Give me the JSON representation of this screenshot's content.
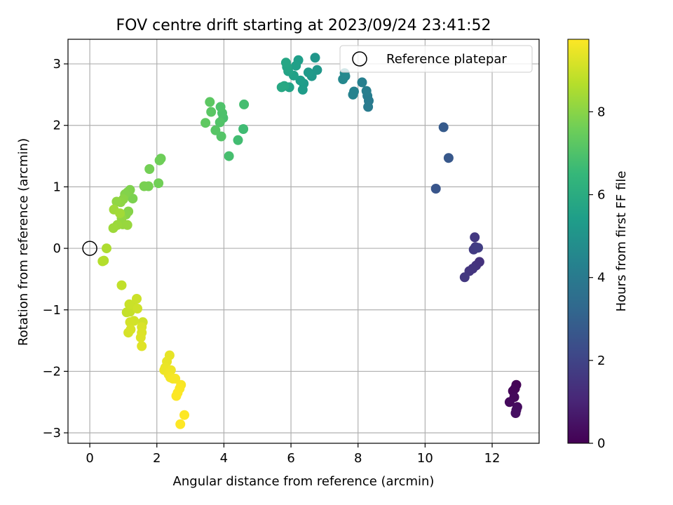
{
  "chart_data": {
    "type": "scatter",
    "title": "FOV centre drift starting at 2023/09/24 23:41:52",
    "xlabel": "Angular distance from reference (arcmin)",
    "ylabel": "Rotation from reference (arcmin)",
    "xlim": [
      -0.65,
      13.4
    ],
    "ylim": [
      -3.17,
      3.4
    ],
    "xticks": [
      0,
      2,
      4,
      6,
      8,
      10,
      12
    ],
    "yticks": [
      -3,
      -2,
      -1,
      0,
      1,
      2,
      3
    ],
    "xtick_labels": [
      "0",
      "2",
      "4",
      "6",
      "8",
      "10",
      "12"
    ],
    "ytick_labels": [
      "−3",
      "−2",
      "−1",
      "0",
      "1",
      "2",
      "3"
    ],
    "grid": true,
    "legend": {
      "placement": "top-right",
      "entries": [
        {
          "label": "Reference platepar",
          "marker": "open-circle"
        }
      ]
    },
    "reference_point": {
      "x": 0,
      "y": 0,
      "marker": "open-circle"
    },
    "colorbar": {
      "label": "Hours from first FF file",
      "min": 0,
      "max": 9.75,
      "ticks": [
        0,
        2,
        4,
        6,
        8
      ],
      "tick_labels": [
        "0",
        "2",
        "4",
        "6",
        "8"
      ],
      "colormap": "viridis",
      "colormap_stops": [
        "#440154",
        "#482878",
        "#3e4989",
        "#31688e",
        "#26828e",
        "#1f9e89",
        "#35b779",
        "#6ece58",
        "#b5de2b",
        "#fde725"
      ]
    },
    "series": [
      {
        "points": [
          [
            12.72,
            -2.22
          ],
          [
            12.68,
            -2.28
          ],
          [
            12.62,
            -2.32
          ],
          [
            12.66,
            -2.42
          ],
          [
            12.52,
            -2.5
          ],
          [
            12.75,
            -2.58
          ],
          [
            12.72,
            -2.63
          ],
          [
            12.7,
            -2.68
          ],
          [
            11.62,
            -0.22
          ],
          [
            11.52,
            -0.28
          ],
          [
            11.42,
            -0.33
          ],
          [
            11.32,
            -0.37
          ],
          [
            11.18,
            -0.47
          ],
          [
            11.48,
            0.18
          ],
          [
            11.45,
            -0.02
          ],
          [
            11.5,
            0.02
          ],
          [
            11.58,
            0.01
          ],
          [
            10.32,
            0.97
          ],
          [
            10.7,
            1.47
          ],
          [
            10.55,
            1.97
          ],
          [
            8.32,
            2.4
          ],
          [
            8.3,
            2.3
          ],
          [
            8.28,
            2.48
          ],
          [
            8.25,
            2.56
          ],
          [
            8.12,
            2.7
          ],
          [
            7.88,
            2.55
          ],
          [
            7.85,
            2.5
          ],
          [
            7.62,
            2.8
          ],
          [
            7.55,
            2.75
          ],
          [
            7.6,
            2.85
          ],
          [
            6.72,
            3.1
          ],
          [
            6.78,
            2.9
          ],
          [
            6.62,
            2.8
          ],
          [
            6.52,
            2.86
          ],
          [
            6.38,
            2.68
          ],
          [
            6.35,
            2.58
          ],
          [
            6.28,
            2.73
          ],
          [
            6.22,
            3.06
          ],
          [
            6.15,
            2.97
          ],
          [
            6.08,
            2.81
          ],
          [
            5.95,
            2.62
          ],
          [
            5.92,
            2.88
          ],
          [
            5.88,
            2.95
          ],
          [
            5.85,
            3.02
          ],
          [
            5.8,
            2.64
          ],
          [
            5.72,
            2.62
          ],
          [
            4.58,
            1.94
          ],
          [
            4.42,
            1.76
          ],
          [
            4.6,
            2.34
          ],
          [
            4.15,
            1.5
          ],
          [
            3.98,
            2.12
          ],
          [
            3.95,
            2.2
          ],
          [
            3.9,
            2.3
          ],
          [
            3.88,
            2.05
          ],
          [
            3.92,
            1.82
          ],
          [
            3.75,
            1.92
          ],
          [
            3.62,
            2.22
          ],
          [
            3.58,
            2.38
          ],
          [
            3.45,
            2.04
          ],
          [
            2.12,
            1.46
          ],
          [
            2.08,
            1.43
          ],
          [
            2.05,
            1.06
          ],
          [
            1.78,
            1.29
          ],
          [
            1.75,
            1.01
          ],
          [
            1.62,
            1.01
          ],
          [
            1.28,
            0.81
          ],
          [
            1.2,
            0.95
          ],
          [
            1.12,
            0.91
          ],
          [
            1.05,
            0.88
          ],
          [
            1.15,
            0.6
          ],
          [
            1.08,
            0.55
          ],
          [
            1.0,
            0.8
          ],
          [
            0.92,
            0.75
          ],
          [
            0.8,
            0.76
          ],
          [
            0.95,
            0.49
          ],
          [
            0.98,
            0.39
          ],
          [
            1.12,
            0.38
          ],
          [
            0.82,
            0.38
          ],
          [
            0.7,
            0.33
          ],
          [
            0.72,
            0.63
          ],
          [
            0.9,
            0.57
          ],
          [
            0.5,
            0.0
          ],
          [
            0.42,
            -0.2
          ],
          [
            0.38,
            -0.21
          ],
          [
            0.95,
            -0.6
          ],
          [
            1.1,
            -1.04
          ],
          [
            1.2,
            -1.03
          ],
          [
            1.28,
            -0.92
          ],
          [
            1.18,
            -0.91
          ],
          [
            1.4,
            -0.82
          ],
          [
            1.42,
            -0.98
          ],
          [
            1.58,
            -1.2
          ],
          [
            1.32,
            -1.18
          ],
          [
            1.2,
            -1.2
          ],
          [
            1.15,
            -1.37
          ],
          [
            1.22,
            -1.32
          ],
          [
            1.55,
            -1.28
          ],
          [
            1.55,
            -1.37
          ],
          [
            1.52,
            -1.45
          ],
          [
            1.55,
            -1.59
          ],
          [
            2.38,
            -1.74
          ],
          [
            2.3,
            -1.84
          ],
          [
            2.25,
            -1.94
          ],
          [
            2.22,
            -1.98
          ],
          [
            2.42,
            -1.98
          ],
          [
            2.35,
            -2.05
          ],
          [
            2.4,
            -2.1
          ],
          [
            2.48,
            -2.12
          ],
          [
            2.55,
            -2.12
          ],
          [
            2.72,
            -2.22
          ],
          [
            2.68,
            -2.28
          ],
          [
            2.62,
            -2.35
          ],
          [
            2.58,
            -2.4
          ],
          [
            2.82,
            -2.71
          ],
          [
            2.7,
            -2.86
          ]
        ],
        "hours": [
          0.05,
          0.1,
          0.15,
          0.2,
          0.25,
          0.3,
          0.35,
          0.4,
          1.4,
          1.45,
          1.5,
          1.55,
          1.6,
          1.65,
          1.7,
          1.75,
          1.8,
          2.6,
          2.7,
          2.8,
          4.0,
          4.05,
          4.1,
          4.15,
          4.2,
          4.3,
          4.35,
          4.5,
          4.55,
          4.6,
          5.1,
          5.15,
          5.2,
          5.25,
          5.3,
          5.35,
          5.4,
          5.45,
          5.5,
          5.55,
          5.6,
          5.65,
          5.7,
          5.75,
          5.8,
          5.85,
          6.7,
          6.75,
          6.8,
          6.85,
          6.9,
          6.95,
          7.0,
          7.05,
          7.1,
          7.15,
          7.2,
          7.25,
          7.3,
          7.55,
          7.58,
          7.62,
          7.66,
          7.7,
          7.74,
          7.78,
          7.82,
          7.86,
          7.9,
          7.94,
          7.98,
          8.02,
          8.06,
          8.1,
          8.14,
          8.18,
          8.22,
          8.26,
          8.3,
          8.34,
          8.38,
          8.55,
          8.6,
          8.65,
          8.85,
          8.88,
          8.91,
          8.94,
          8.97,
          9.0,
          9.03,
          9.06,
          9.09,
          9.12,
          9.15,
          9.18,
          9.21,
          9.24,
          9.27,
          9.3,
          9.4,
          9.43,
          9.46,
          9.49,
          9.52,
          9.55,
          9.58,
          9.61,
          9.64,
          9.67,
          9.7,
          9.72,
          9.74,
          9.75,
          9.75
        ]
      }
    ]
  }
}
